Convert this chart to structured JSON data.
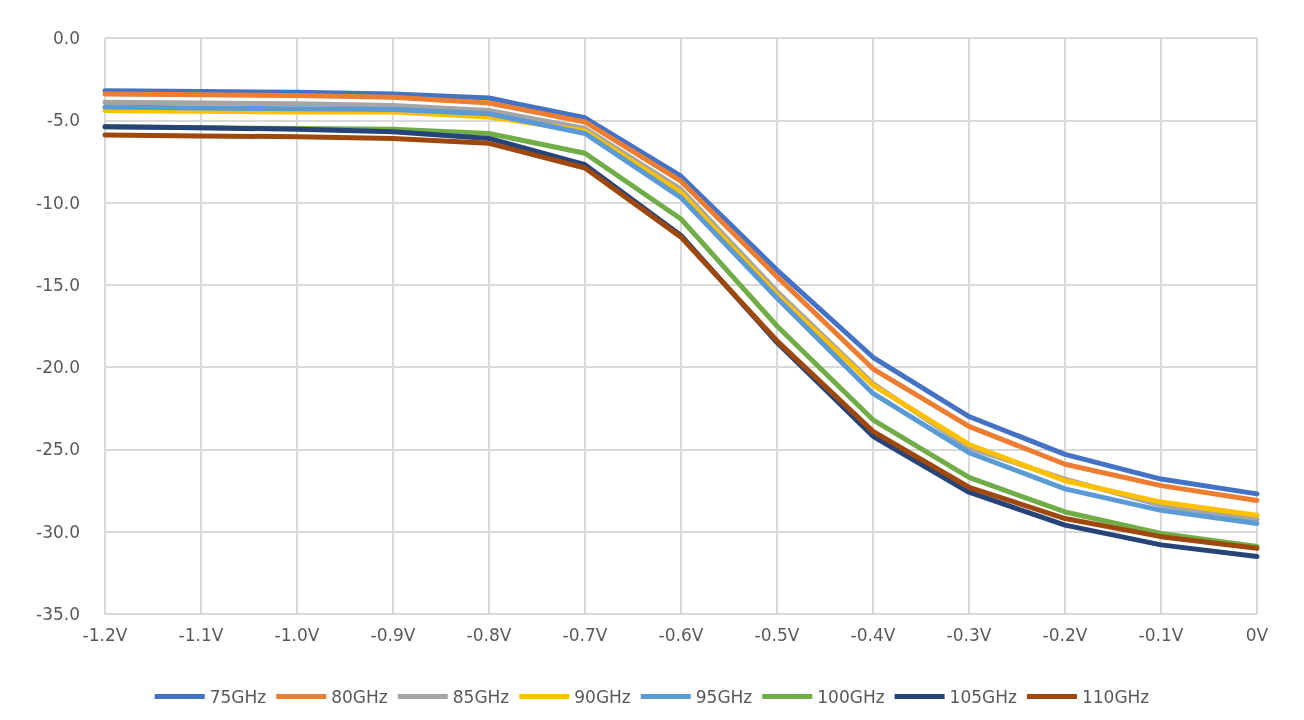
{
  "chart_data": {
    "type": "line",
    "categories": [
      "-1.2V",
      "-1.1V",
      "-1.0V",
      "-0.9V",
      "-0.8V",
      "-0.7V",
      "-0.6V",
      "-0.5V",
      "-0.4V",
      "-0.3V",
      "-0.2V",
      "-0.1V",
      "0V"
    ],
    "ylim": [
      -35,
      0
    ],
    "yticks": [
      {
        "value": -35,
        "label": "-35.0"
      },
      {
        "value": -30,
        "label": "-30.0"
      },
      {
        "value": -25,
        "label": "-25.0"
      },
      {
        "value": -20,
        "label": "-20.0"
      },
      {
        "value": -15,
        "label": "-15.0"
      },
      {
        "value": -10,
        "label": "-10.0"
      },
      {
        "value": -5,
        "label": "-5.0"
      },
      {
        "value": 0,
        "label": "0.0"
      }
    ],
    "grid": true,
    "legend": "bottom",
    "marker": "none",
    "line_style": "solid",
    "series": [
      {
        "name": "75GHz",
        "color": "#4472c4",
        "values": [
          -3.2,
          -3.25,
          -3.3,
          -3.4,
          -3.65,
          -4.85,
          -8.4,
          -14.1,
          -19.4,
          -23.0,
          -25.3,
          -26.8,
          -27.7
        ]
      },
      {
        "name": "80GHz",
        "color": "#ed7d31",
        "values": [
          -3.4,
          -3.45,
          -3.5,
          -3.6,
          -3.95,
          -5.1,
          -8.7,
          -14.5,
          -20.1,
          -23.6,
          -25.9,
          -27.2,
          -28.1
        ]
      },
      {
        "name": "85GHz",
        "color": "#a5a5a5",
        "values": [
          -3.9,
          -3.95,
          -4.0,
          -4.1,
          -4.4,
          -5.5,
          -9.2,
          -15.4,
          -21.0,
          -24.9,
          -26.8,
          -28.4,
          -29.25
        ]
      },
      {
        "name": "90GHz",
        "color": "#ffc000",
        "values": [
          -4.4,
          -4.45,
          -4.5,
          -4.5,
          -4.8,
          -5.65,
          -9.4,
          -15.6,
          -21.1,
          -24.7,
          -26.9,
          -28.2,
          -29.0
        ]
      },
      {
        "name": "95GHz",
        "color": "#5b9bd5",
        "values": [
          -4.2,
          -4.25,
          -4.3,
          -4.35,
          -4.6,
          -5.8,
          -9.7,
          -15.8,
          -21.6,
          -25.2,
          -27.4,
          -28.7,
          -29.5
        ]
      },
      {
        "name": "100GHz",
        "color": "#70ad47",
        "values": [
          -5.4,
          -5.45,
          -5.5,
          -5.55,
          -5.8,
          -7.0,
          -11.0,
          -17.5,
          -23.2,
          -26.7,
          -28.8,
          -30.1,
          -30.9
        ]
      },
      {
        "name": "105GHz",
        "color": "#264478",
        "values": [
          -5.4,
          -5.45,
          -5.55,
          -5.7,
          -6.1,
          -7.7,
          -12.0,
          -18.5,
          -24.2,
          -27.6,
          -29.6,
          -30.8,
          -31.5
        ]
      },
      {
        "name": "110GHz",
        "color": "#9e480e",
        "values": [
          -5.9,
          -5.95,
          -6.0,
          -6.1,
          -6.4,
          -7.9,
          -12.1,
          -18.4,
          -23.9,
          -27.3,
          -29.2,
          -30.3,
          -31.0
        ]
      }
    ]
  }
}
